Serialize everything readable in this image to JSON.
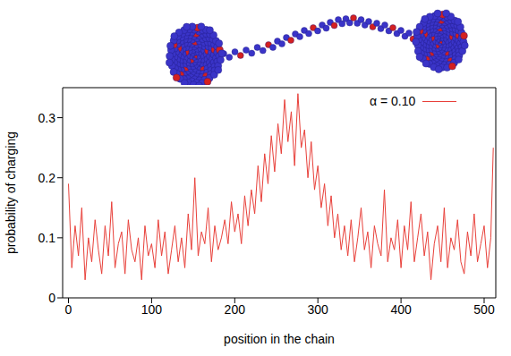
{
  "chart_data": {
    "type": "line",
    "x_label": "position in the chain",
    "y_label": "probability of charging",
    "xlim": [
      -7,
      514
    ],
    "ylim": [
      0,
      0.35
    ],
    "xticks": [
      0,
      100,
      200,
      300,
      400,
      500
    ],
    "yticks": [
      0,
      0.1,
      0.2,
      0.3
    ],
    "legend": "upper right",
    "x": [
      0,
      4,
      8,
      12,
      16,
      20,
      24,
      28,
      32,
      36,
      40,
      44,
      48,
      52,
      56,
      60,
      64,
      68,
      72,
      76,
      80,
      84,
      88,
      92,
      96,
      100,
      104,
      108,
      112,
      116,
      120,
      124,
      128,
      132,
      136,
      140,
      144,
      148,
      152,
      156,
      160,
      164,
      168,
      172,
      176,
      180,
      184,
      188,
      192,
      196,
      200,
      204,
      208,
      212,
      216,
      220,
      224,
      228,
      232,
      236,
      240,
      244,
      248,
      252,
      256,
      260,
      264,
      268,
      272,
      276,
      280,
      284,
      288,
      292,
      296,
      300,
      304,
      308,
      312,
      316,
      320,
      324,
      328,
      332,
      336,
      340,
      344,
      348,
      352,
      356,
      360,
      364,
      368,
      372,
      376,
      380,
      384,
      388,
      392,
      396,
      400,
      404,
      408,
      412,
      416,
      420,
      424,
      428,
      432,
      436,
      440,
      444,
      448,
      452,
      456,
      460,
      464,
      468,
      472,
      476,
      480,
      484,
      488,
      492,
      496,
      500,
      504,
      508,
      511
    ],
    "series": [
      {
        "name": "α = 0.10",
        "color": "#e8403a",
        "values": [
          0.19,
          0.05,
          0.12,
          0.07,
          0.15,
          0.03,
          0.1,
          0.06,
          0.13,
          0.08,
          0.04,
          0.12,
          0.07,
          0.16,
          0.05,
          0.09,
          0.11,
          0.04,
          0.13,
          0.08,
          0.06,
          0.1,
          0.03,
          0.12,
          0.07,
          0.09,
          0.05,
          0.13,
          0.07,
          0.11,
          0.04,
          0.08,
          0.12,
          0.06,
          0.1,
          0.05,
          0.14,
          0.08,
          0.2,
          0.07,
          0.11,
          0.09,
          0.15,
          0.06,
          0.12,
          0.08,
          0.1,
          0.13,
          0.09,
          0.16,
          0.11,
          0.14,
          0.09,
          0.17,
          0.12,
          0.18,
          0.14,
          0.22,
          0.16,
          0.24,
          0.19,
          0.27,
          0.21,
          0.29,
          0.24,
          0.33,
          0.26,
          0.31,
          0.22,
          0.34,
          0.25,
          0.28,
          0.2,
          0.26,
          0.18,
          0.22,
          0.15,
          0.19,
          0.12,
          0.17,
          0.1,
          0.14,
          0.08,
          0.12,
          0.07,
          0.13,
          0.06,
          0.1,
          0.15,
          0.08,
          0.11,
          0.05,
          0.12,
          0.09,
          0.07,
          0.18,
          0.06,
          0.1,
          0.08,
          0.13,
          0.05,
          0.12,
          0.08,
          0.16,
          0.06,
          0.1,
          0.14,
          0.07,
          0.11,
          0.03,
          0.09,
          0.12,
          0.06,
          0.15,
          0.05,
          0.1,
          0.08,
          0.13,
          0.06,
          0.04,
          0.11,
          0.07,
          0.14,
          0.06,
          0.09,
          0.12,
          0.05,
          0.1,
          0.25
        ]
      }
    ]
  }
}
